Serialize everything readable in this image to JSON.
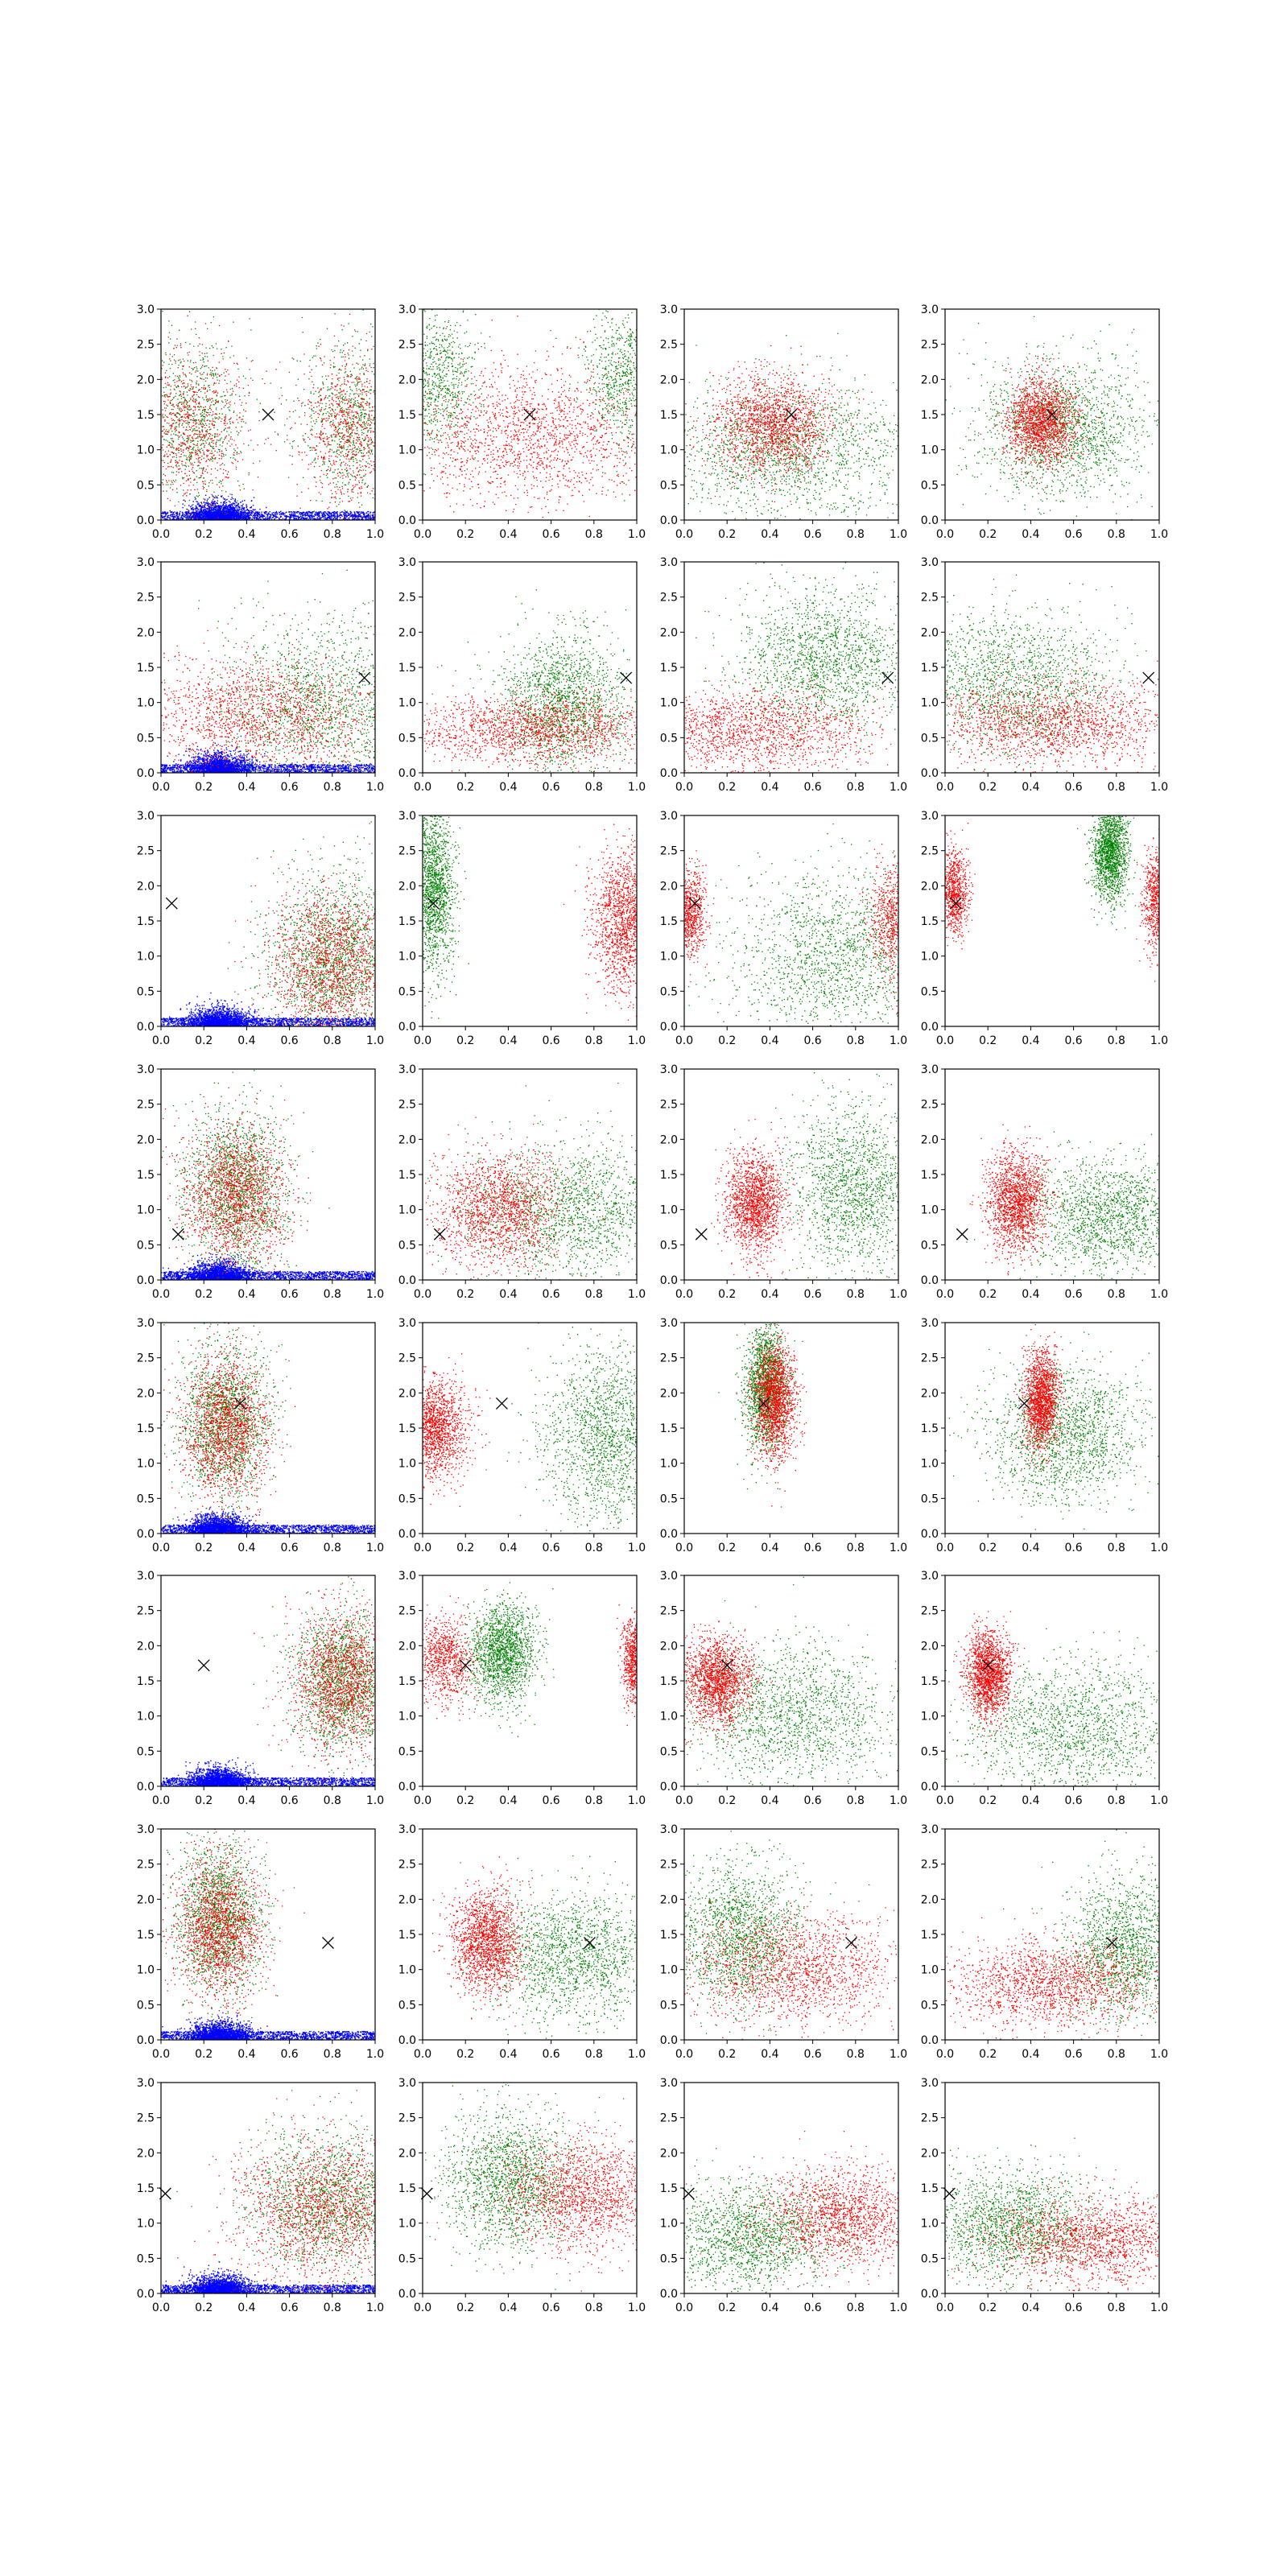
{
  "figure": {
    "rows": 8,
    "cols": 4,
    "background": "#ffffff"
  },
  "chart_data": {
    "type": "scatter",
    "grid": false,
    "legend": "none",
    "xlim": [
      0,
      1
    ],
    "ylim": [
      0,
      3
    ],
    "xticks": [
      "0.0",
      "0.2",
      "0.4",
      "0.6",
      "0.8",
      "1.0"
    ],
    "yticks": [
      "0.0",
      "0.5",
      "1.0",
      "1.5",
      "2.0",
      "2.5",
      "3.0"
    ],
    "colors": {
      "red": "#ff0000",
      "green": "#008000",
      "blue": "#0000ff",
      "marker": "#000000"
    },
    "blue_background_column": 0,
    "blue_cluster": {
      "x": 0.27,
      "sx": 0.07,
      "y": 0.15,
      "sy": 0.12,
      "floor_y": 0.12
    },
    "rows": [
      {
        "marker": [
          0.5,
          1.5
        ],
        "panels": [
          {
            "red": [
              [
                0.15,
                1.3,
                0.12,
                0.55
              ],
              [
                0.88,
                1.3,
                0.12,
                0.55
              ]
            ],
            "green": [
              [
                0.15,
                1.4,
                0.12,
                0.6
              ],
              [
                0.88,
                1.4,
                0.12,
                0.6
              ]
            ]
          },
          {
            "red": [
              [
                0.5,
                1.2,
                0.3,
                0.5
              ]
            ],
            "green": [
              [
                0.05,
                2.0,
                0.1,
                0.5
              ],
              [
                0.95,
                2.0,
                0.1,
                0.5
              ]
            ]
          },
          {
            "red": [
              [
                0.4,
                1.35,
                0.14,
                0.35
              ]
            ],
            "green": [
              [
                0.5,
                1.0,
                0.3,
                0.5
              ]
            ]
          },
          {
            "red": [
              [
                0.45,
                1.4,
                0.08,
                0.3
              ]
            ],
            "green": [
              [
                0.55,
                1.3,
                0.2,
                0.5
              ]
            ]
          }
        ]
      },
      {
        "marker": [
          0.95,
          1.35
        ],
        "panels": [
          {
            "red": [
              [
                0.45,
                0.8,
                0.3,
                0.4
              ]
            ],
            "green": [
              [
                0.75,
                1.0,
                0.25,
                0.6
              ]
            ]
          },
          {
            "red": [
              [
                0.5,
                0.6,
                0.3,
                0.25
              ]
            ],
            "green": [
              [
                0.65,
                1.0,
                0.15,
                0.5
              ]
            ]
          },
          {
            "red": [
              [
                0.3,
                0.6,
                0.3,
                0.3
              ]
            ],
            "green": [
              [
                0.65,
                1.6,
                0.2,
                0.5
              ]
            ]
          },
          {
            "red": [
              [
                0.5,
                0.7,
                0.3,
                0.3
              ]
            ],
            "green": [
              [
                0.3,
                1.3,
                0.25,
                0.5
              ]
            ]
          }
        ]
      },
      {
        "marker": [
          0.05,
          1.75
        ],
        "panels": [
          {
            "red": [
              [
                0.8,
                0.9,
                0.15,
                0.5
              ]
            ],
            "green": [
              [
                0.8,
                1.0,
                0.15,
                0.6
              ]
            ]
          },
          {
            "red": [
              [
                0.95,
                1.5,
                0.08,
                0.5
              ]
            ],
            "green": [
              [
                0.05,
                2.0,
                0.05,
                0.6
              ]
            ]
          },
          {
            "red": [
              [
                0.02,
                1.6,
                0.04,
                0.3
              ],
              [
                0.98,
                1.5,
                0.06,
                0.4
              ]
            ],
            "green": [
              [
                0.7,
                1.0,
                0.25,
                0.6
              ]
            ]
          },
          {
            "red": [
              [
                0.04,
                1.9,
                0.035,
                0.3
              ],
              [
                0.99,
                1.8,
                0.035,
                0.35
              ]
            ],
            "green": [
              [
                0.77,
                2.5,
                0.04,
                0.35
              ]
            ]
          }
        ]
      },
      {
        "marker": [
          0.08,
          0.65
        ],
        "panels": [
          {
            "red": [
              [
                0.35,
                1.2,
                0.12,
                0.5
              ]
            ],
            "green": [
              [
                0.35,
                1.3,
                0.12,
                0.55
              ]
            ]
          },
          {
            "red": [
              [
                0.35,
                1.0,
                0.15,
                0.4
              ]
            ],
            "green": [
              [
                0.7,
                1.0,
                0.25,
                0.5
              ]
            ]
          },
          {
            "red": [
              [
                0.33,
                1.1,
                0.07,
                0.35
              ]
            ],
            "green": [
              [
                0.8,
                1.3,
                0.15,
                0.6
              ]
            ]
          },
          {
            "red": [
              [
                0.33,
                1.1,
                0.07,
                0.35
              ]
            ],
            "green": [
              [
                0.75,
                0.9,
                0.2,
                0.4
              ]
            ]
          }
        ]
      },
      {
        "marker": [
          0.37,
          1.85
        ],
        "panels": [
          {
            "red": [
              [
                0.3,
                1.5,
                0.1,
                0.5
              ]
            ],
            "green": [
              [
                0.3,
                1.6,
                0.1,
                0.55
              ]
            ]
          },
          {
            "red": [
              [
                0.05,
                1.5,
                0.08,
                0.35
              ]
            ],
            "green": [
              [
                0.85,
                1.4,
                0.15,
                0.6
              ]
            ]
          },
          {
            "red": [
              [
                0.42,
                1.9,
                0.05,
                0.4
              ]
            ],
            "green": [
              [
                0.38,
                2.1,
                0.05,
                0.45
              ]
            ]
          },
          {
            "red": [
              [
                0.45,
                1.9,
                0.04,
                0.35
              ]
            ],
            "green": [
              [
                0.55,
                1.4,
                0.18,
                0.5
              ]
            ]
          }
        ]
      },
      {
        "marker": [
          0.2,
          1.72
        ],
        "panels": [
          {
            "red": [
              [
                0.85,
                1.5,
                0.12,
                0.5
              ]
            ],
            "green": [
              [
                0.85,
                1.5,
                0.12,
                0.5
              ]
            ]
          },
          {
            "red": [
              [
                0.1,
                1.8,
                0.07,
                0.3
              ],
              [
                0.99,
                1.8,
                0.03,
                0.3
              ]
            ],
            "green": [
              [
                0.37,
                1.9,
                0.08,
                0.35
              ]
            ]
          },
          {
            "red": [
              [
                0.15,
                1.5,
                0.08,
                0.3
              ]
            ],
            "green": [
              [
                0.5,
                1.0,
                0.25,
                0.5
              ]
            ]
          },
          {
            "red": [
              [
                0.2,
                1.6,
                0.05,
                0.3
              ]
            ],
            "green": [
              [
                0.6,
                0.8,
                0.25,
                0.5
              ]
            ]
          }
        ]
      },
      {
        "marker": [
          0.78,
          1.38
        ],
        "panels": [
          {
            "red": [
              [
                0.27,
                1.6,
                0.1,
                0.5
              ]
            ],
            "green": [
              [
                0.27,
                1.7,
                0.1,
                0.55
              ]
            ]
          },
          {
            "red": [
              [
                0.3,
                1.4,
                0.08,
                0.35
              ]
            ],
            "green": [
              [
                0.7,
                1.2,
                0.2,
                0.45
              ]
            ]
          },
          {
            "red": [
              [
                0.5,
                1.0,
                0.25,
                0.4
              ]
            ],
            "green": [
              [
                0.25,
                1.5,
                0.15,
                0.5
              ]
            ]
          },
          {
            "red": [
              [
                0.5,
                0.8,
                0.25,
                0.3
              ]
            ],
            "green": [
              [
                0.85,
                1.3,
                0.15,
                0.5
              ]
            ]
          }
        ]
      },
      {
        "marker": [
          0.02,
          1.42
        ],
        "panels": [
          {
            "red": [
              [
                0.75,
                1.2,
                0.2,
                0.5
              ]
            ],
            "green": [
              [
                0.8,
                1.3,
                0.2,
                0.5
              ]
            ]
          },
          {
            "red": [
              [
                0.75,
                1.4,
                0.2,
                0.4
              ]
            ],
            "green": [
              [
                0.4,
                1.6,
                0.15,
                0.5
              ]
            ]
          },
          {
            "red": [
              [
                0.75,
                1.1,
                0.2,
                0.35
              ]
            ],
            "green": [
              [
                0.3,
                0.8,
                0.2,
                0.4
              ]
            ]
          },
          {
            "red": [
              [
                0.7,
                0.75,
                0.25,
                0.3
              ]
            ],
            "green": [
              [
                0.3,
                1.0,
                0.2,
                0.4
              ]
            ]
          }
        ]
      }
    ]
  }
}
